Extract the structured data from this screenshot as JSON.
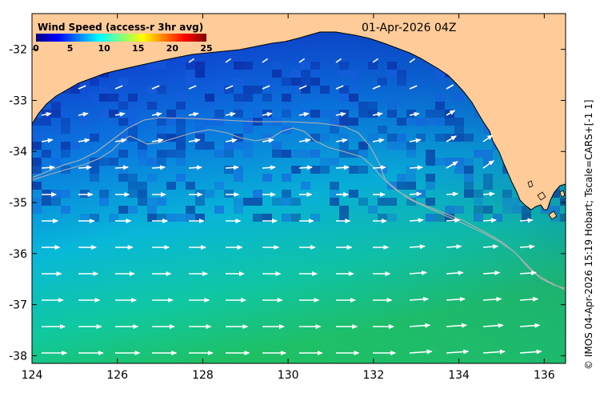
{
  "map": {
    "date_label": "01-Apr-2026 04Z",
    "credit": "© IMOS 04-Apr-2026 15:19 Hobart; Tscale=CARS+[-1 1]",
    "land_color": "#FFCC99",
    "contour_color": "#B0B0B0",
    "arrow_color": "#FFFFFF",
    "x_ticks": [
      "124",
      "126",
      "128",
      "130",
      "132",
      "134",
      "136"
    ],
    "y_ticks": [
      "-32",
      "-33",
      "-34",
      "-35",
      "-36",
      "-37",
      "-38"
    ],
    "x_range": [
      124,
      136.5
    ],
    "y_range": [
      -38.15,
      -31.3
    ]
  },
  "legend": {
    "title": "Wind Speed (access-r 3hr avg)",
    "ticks": [
      "0",
      "5",
      "10",
      "15",
      "20",
      "25"
    ],
    "range": [
      0,
      25
    ],
    "colors": [
      "#00007F",
      "#0000FF",
      "#007FFF",
      "#00FFFF",
      "#7FFF7F",
      "#FFFF00",
      "#FF7F00",
      "#FF0000",
      "#7F0000"
    ]
  }
}
